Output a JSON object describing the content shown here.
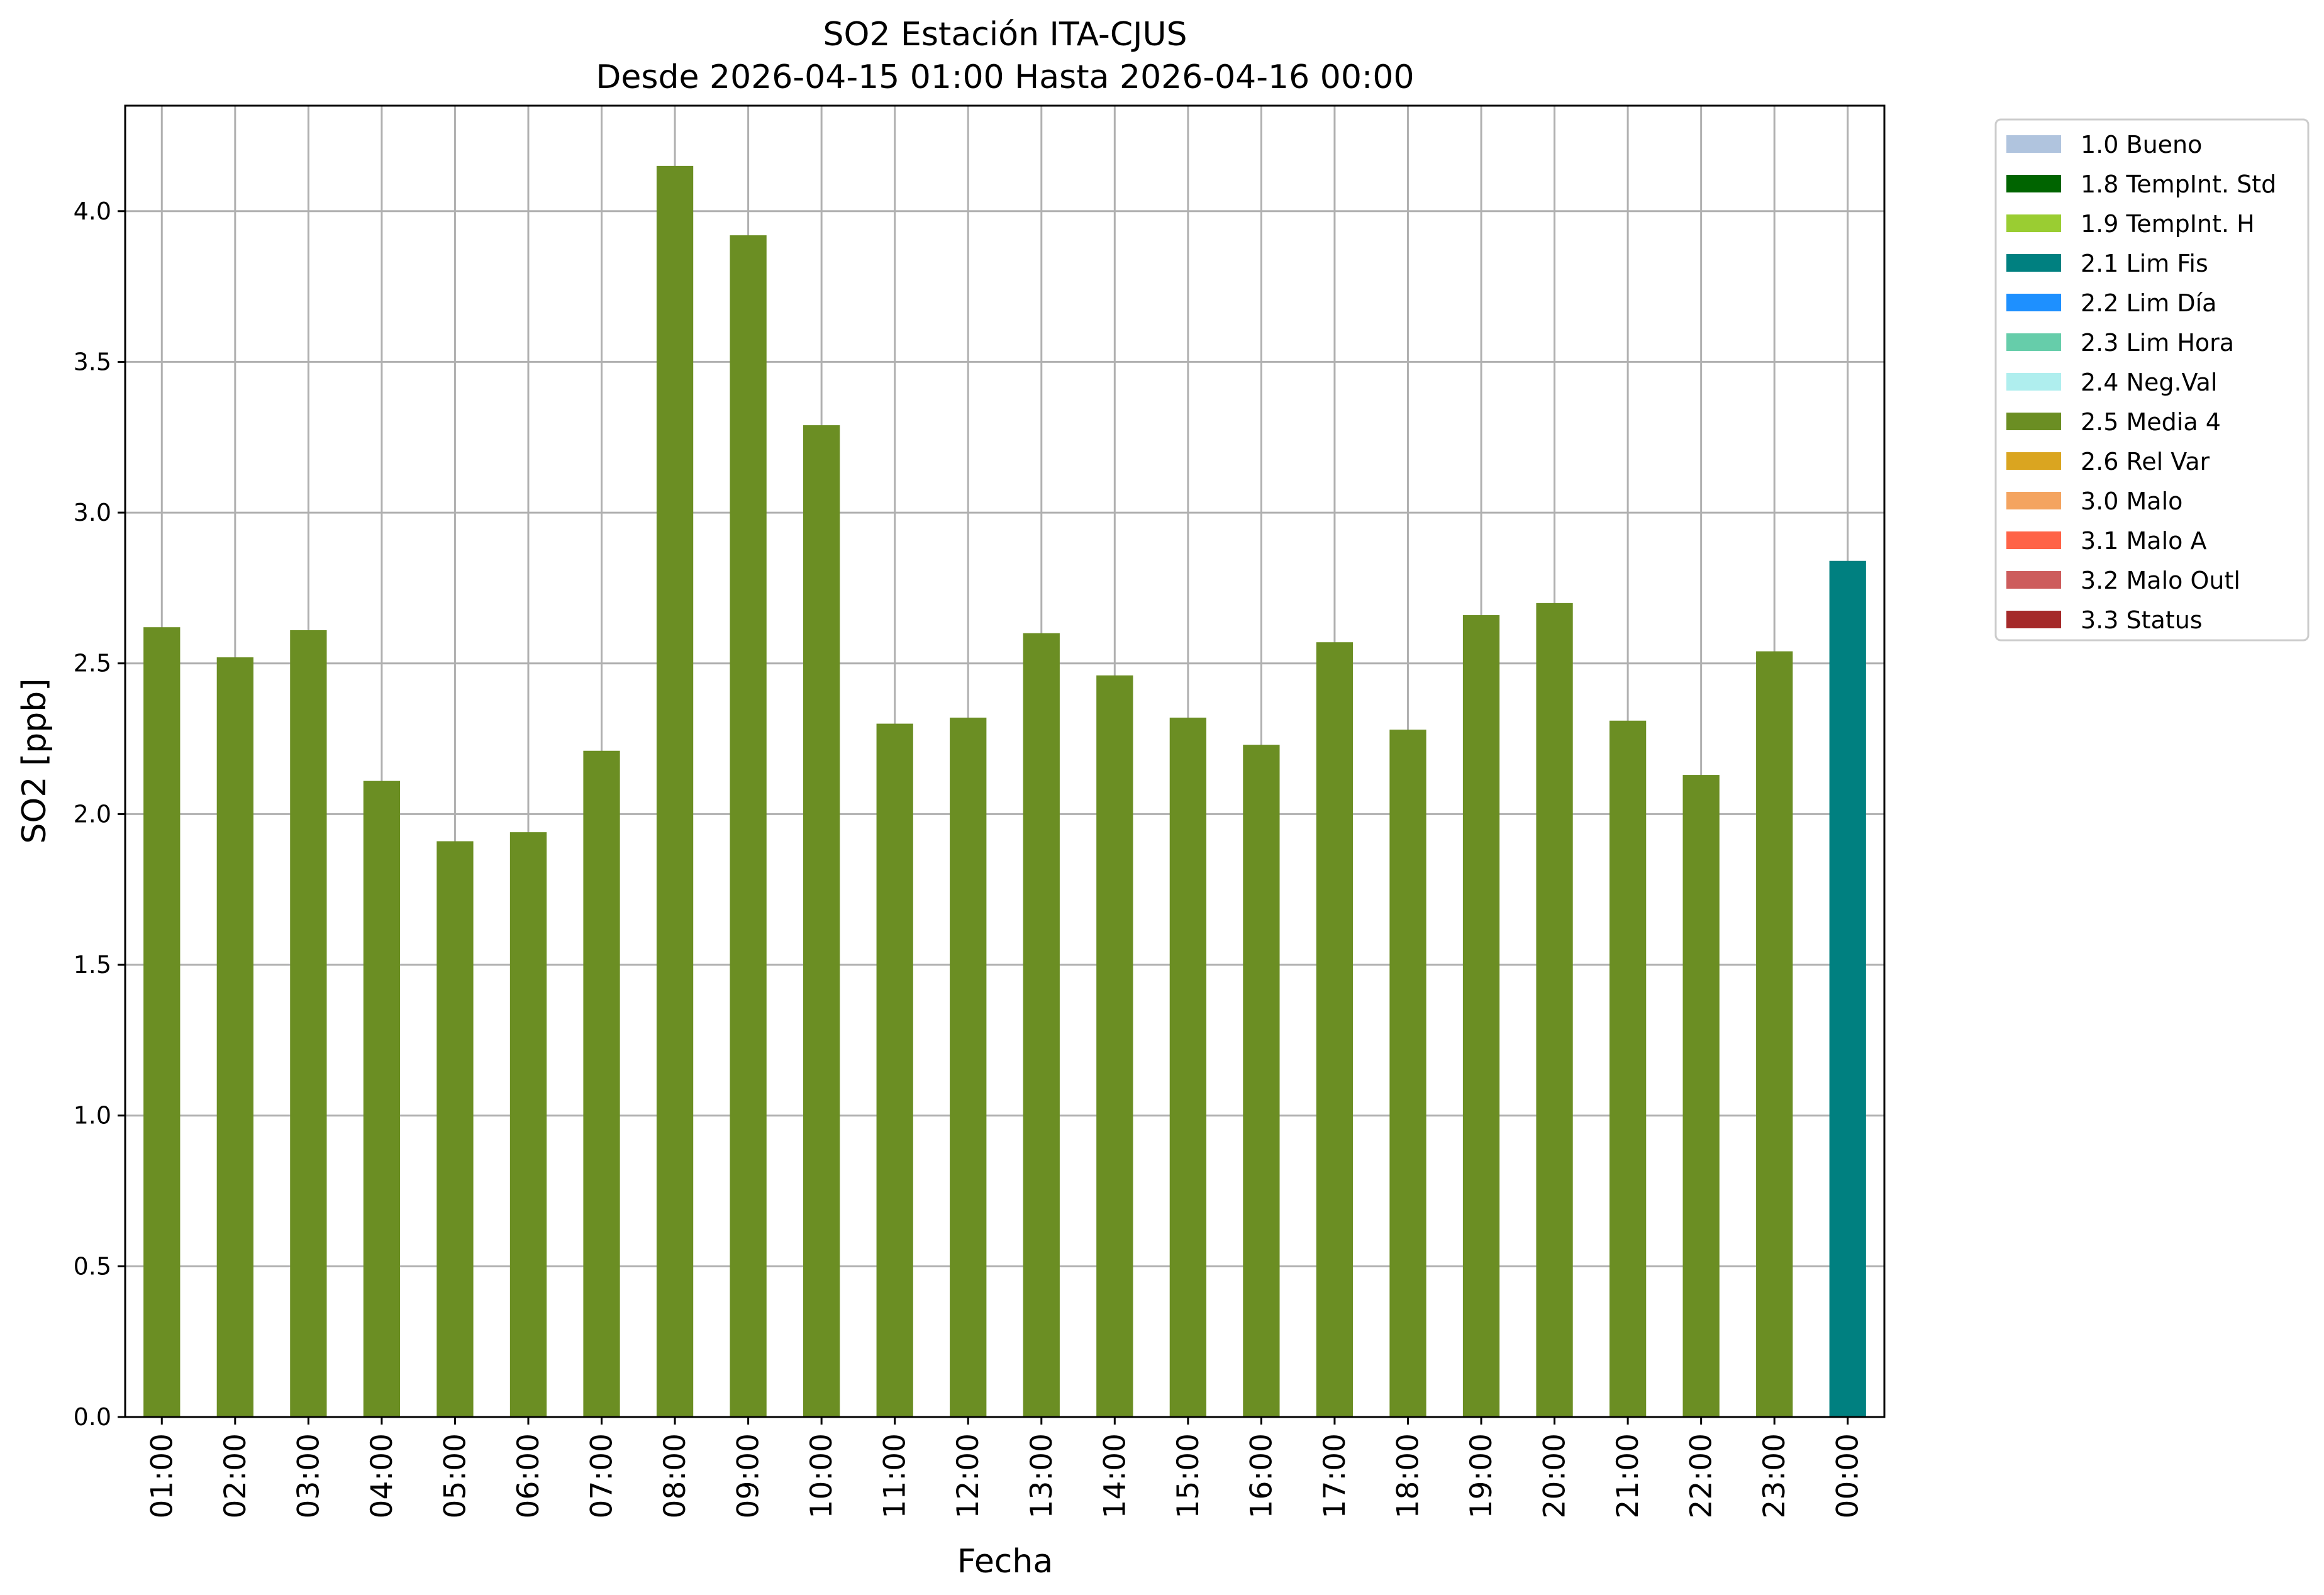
{
  "chart_data": {
    "type": "bar",
    "title": "SO2 Estación ITA-CJUS",
    "subtitle": "Desde 2026-04-15 01:00 Hasta 2026-04-16 00:00",
    "xlabel": "Fecha",
    "ylabel": "SO2 [ppb]",
    "ylim": [
      0,
      4.35
    ],
    "yticks": [
      "0.0",
      "0.5",
      "1.0",
      "1.5",
      "2.0",
      "2.5",
      "3.0",
      "3.5",
      "4.0"
    ],
    "grid": true,
    "legend_position": "outside-top-right",
    "categories": [
      "01:00",
      "02:00",
      "03:00",
      "04:00",
      "05:00",
      "06:00",
      "07:00",
      "08:00",
      "09:00",
      "10:00",
      "11:00",
      "12:00",
      "13:00",
      "14:00",
      "15:00",
      "16:00",
      "17:00",
      "18:00",
      "19:00",
      "20:00",
      "21:00",
      "22:00",
      "23:00",
      "00:00"
    ],
    "values": [
      2.62,
      2.52,
      2.61,
      2.11,
      1.91,
      1.94,
      2.21,
      4.15,
      3.92,
      3.29,
      2.3,
      2.32,
      2.6,
      2.46,
      2.32,
      2.23,
      2.57,
      2.28,
      2.66,
      2.7,
      2.31,
      2.13,
      2.54,
      2.84
    ],
    "flags": [
      "2.5 Media 4",
      "2.5 Media 4",
      "2.5 Media 4",
      "2.5 Media 4",
      "2.5 Media 4",
      "2.5 Media 4",
      "2.5 Media 4",
      "2.5 Media 4",
      "2.5 Media 4",
      "2.5 Media 4",
      "2.5 Media 4",
      "2.5 Media 4",
      "2.5 Media 4",
      "2.5 Media 4",
      "2.5 Media 4",
      "2.5 Media 4",
      "2.5 Media 4",
      "2.5 Media 4",
      "2.5 Media 4",
      "2.5 Media 4",
      "2.5 Media 4",
      "2.5 Media 4",
      "2.5 Media 4",
      "2.1 Lim Fis"
    ],
    "legend": [
      {
        "label": "1.0 Bueno",
        "color": "#b0c4de"
      },
      {
        "label": "1.8 TempInt. Std",
        "color": "#006400"
      },
      {
        "label": "1.9 TempInt. H",
        "color": "#9acd32"
      },
      {
        "label": "2.1 Lim Fis",
        "color": "#008080"
      },
      {
        "label": "2.2 Lim Día",
        "color": "#1e90ff"
      },
      {
        "label": "2.3 Lim Hora",
        "color": "#66cdaa"
      },
      {
        "label": "2.4 Neg.Val",
        "color": "#afeeee"
      },
      {
        "label": "2.5 Media 4",
        "color": "#6b8e23"
      },
      {
        "label": "2.6 Rel Var",
        "color": "#daa520"
      },
      {
        "label": "3.0 Malo",
        "color": "#f4a460"
      },
      {
        "label": "3.1 Malo A",
        "color": "#ff6347"
      },
      {
        "label": "3.2 Malo Outl",
        "color": "#cd5c5c"
      },
      {
        "label": "3.3 Status",
        "color": "#a52a2a"
      }
    ]
  }
}
